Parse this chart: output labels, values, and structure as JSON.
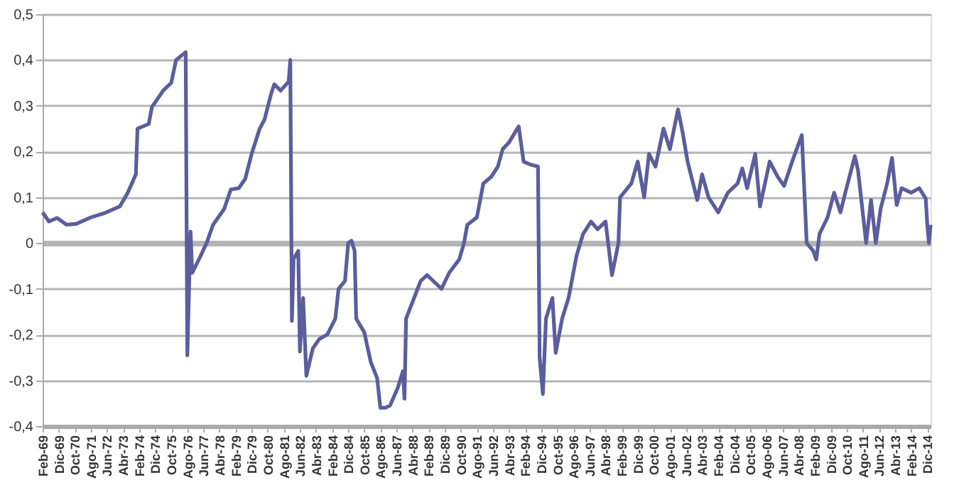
{
  "chart_data": {
    "type": "line",
    "x": [
      "1969-02",
      "1969-06",
      "1969-11",
      "1970-05",
      "1970-11",
      "1971-08",
      "1972-05",
      "1973-02",
      "1973-07",
      "1973-12",
      "1974-01",
      "1974-08",
      "1974-10",
      "1975-05",
      "1975-10",
      "1976-01",
      "1976-07",
      "1976-08",
      "1976-10",
      "1976-11",
      "1977-04",
      "1977-08",
      "1977-12",
      "1978-07",
      "1978-11",
      "1979-04",
      "1979-08",
      "1979-12",
      "1980-05",
      "1980-08",
      "1980-12",
      "1981-02",
      "1981-06",
      "1981-11",
      "1981-12",
      "1982-01",
      "1982-02",
      "1982-05",
      "1982-06",
      "1982-08",
      "1982-10",
      "1983-02",
      "1983-06",
      "1983-11",
      "1984-04",
      "1984-06",
      "1984-10",
      "1984-12",
      "1985-02",
      "1985-04",
      "1985-05",
      "1985-10",
      "1986-02",
      "1986-06",
      "1986-08",
      "1986-11",
      "1987-02",
      "1987-07",
      "1987-10",
      "1987-11",
      "1987-12",
      "1988-05",
      "1988-09",
      "1989-01",
      "1989-10",
      "1990-03",
      "1990-09",
      "1990-12",
      "1991-02",
      "1991-08",
      "1991-12",
      "1992-05",
      "1992-09",
      "1992-12",
      "1993-04",
      "1993-10",
      "1994-01",
      "1994-05",
      "1994-10",
      "1994-11",
      "1995-01",
      "1995-03",
      "1995-07",
      "1995-09",
      "1996-01",
      "1996-05",
      "1996-10",
      "1997-02",
      "1997-07",
      "1997-11",
      "1998-04",
      "1998-08",
      "1998-12",
      "1999-01",
      "1999-08",
      "1999-12",
      "2000-04",
      "2000-07",
      "2000-11",
      "2001-04",
      "2001-08",
      "2002-01",
      "2002-04",
      "2002-07",
      "2003-01",
      "2003-04",
      "2003-08",
      "2004-02",
      "2004-08",
      "2005-02",
      "2005-05",
      "2005-08",
      "2006-01",
      "2006-04",
      "2006-10",
      "2007-03",
      "2007-07",
      "2007-12",
      "2008-06",
      "2008-09",
      "2009-01",
      "2009-03",
      "2009-05",
      "2009-10",
      "2010-02",
      "2010-06",
      "2010-09",
      "2011-03",
      "2011-05",
      "2011-10",
      "2012-01",
      "2012-04",
      "2012-07",
      "2012-11",
      "2013-02",
      "2013-05",
      "2013-08",
      "2014-02",
      "2014-07",
      "2014-11",
      "2014-12",
      "2015-01",
      "2015-02"
    ],
    "series": [
      {
        "color": "#5b5e9c",
        "values": [
          0.067,
          0.047,
          0.055,
          0.04,
          0.042,
          0.056,
          0.066,
          0.08,
          0.11,
          0.15,
          0.25,
          0.26,
          0.297,
          0.333,
          0.35,
          0.4,
          0.417,
          -0.245,
          0.025,
          -0.065,
          -0.03,
          0.0,
          0.04,
          0.075,
          0.117,
          0.12,
          0.14,
          0.195,
          0.25,
          0.27,
          0.325,
          0.347,
          0.333,
          0.353,
          0.4,
          -0.17,
          -0.035,
          -0.017,
          -0.237,
          -0.12,
          -0.29,
          -0.23,
          -0.21,
          -0.2,
          -0.165,
          -0.1,
          -0.083,
          0.0,
          0.005,
          -0.017,
          -0.165,
          -0.195,
          -0.26,
          -0.295,
          -0.36,
          -0.36,
          -0.355,
          -0.315,
          -0.28,
          -0.34,
          -0.165,
          -0.12,
          -0.083,
          -0.07,
          -0.1,
          -0.064,
          -0.036,
          0.0,
          0.04,
          0.056,
          0.13,
          0.145,
          0.167,
          0.205,
          0.22,
          0.255,
          0.178,
          0.172,
          0.167,
          -0.25,
          -0.33,
          -0.165,
          -0.12,
          -0.24,
          -0.165,
          -0.12,
          -0.027,
          0.02,
          0.047,
          0.03,
          0.047,
          -0.07,
          0.0,
          0.1,
          0.13,
          0.178,
          0.1,
          0.195,
          0.167,
          0.25,
          0.205,
          0.292,
          0.24,
          0.178,
          0.094,
          0.15,
          0.1,
          0.067,
          0.11,
          0.13,
          0.163,
          0.12,
          0.195,
          0.08,
          0.178,
          0.145,
          0.125,
          0.178,
          0.236,
          0.0,
          -0.017,
          -0.036,
          0.02,
          0.056,
          0.11,
          0.067,
          0.11,
          0.19,
          0.158,
          0.0,
          0.094,
          0.0,
          0.075,
          0.13,
          0.186,
          0.083,
          0.12,
          0.11,
          0.12,
          0.097,
          0.04,
          0.0,
          0.04
        ]
      }
    ],
    "xlim": [
      "1969-02",
      "2015-02"
    ],
    "xticks": [
      {
        "value": "1969-02",
        "label": "Feb-69"
      },
      {
        "value": "1969-12",
        "label": "Dic-69"
      },
      {
        "value": "1970-10",
        "label": "Oct-70"
      },
      {
        "value": "1971-08",
        "label": "Ago-71"
      },
      {
        "value": "1972-06",
        "label": "Jun-72"
      },
      {
        "value": "1973-04",
        "label": "Abr-73"
      },
      {
        "value": "1974-02",
        "label": "Feb-74"
      },
      {
        "value": "1974-12",
        "label": "Dic-74"
      },
      {
        "value": "1975-10",
        "label": "Oct-75"
      },
      {
        "value": "1976-08",
        "label": "Ago-76"
      },
      {
        "value": "1977-06",
        "label": "Jun-77"
      },
      {
        "value": "1978-04",
        "label": "Abr-78"
      },
      {
        "value": "1979-02",
        "label": "Feb-79"
      },
      {
        "value": "1979-12",
        "label": "Dic-79"
      },
      {
        "value": "1980-10",
        "label": "Oct-80"
      },
      {
        "value": "1981-08",
        "label": "Ago-81"
      },
      {
        "value": "1982-06",
        "label": "Jun-82"
      },
      {
        "value": "1983-04",
        "label": "Abr-83"
      },
      {
        "value": "1984-02",
        "label": "Feb-84"
      },
      {
        "value": "1984-12",
        "label": "Dic-84"
      },
      {
        "value": "1985-10",
        "label": "Oct-85"
      },
      {
        "value": "1986-08",
        "label": "Ago-86"
      },
      {
        "value": "1987-06",
        "label": "Jun-87"
      },
      {
        "value": "1988-04",
        "label": "Abr-88"
      },
      {
        "value": "1989-02",
        "label": "Feb-89"
      },
      {
        "value": "1989-12",
        "label": "Dic-89"
      },
      {
        "value": "1990-10",
        "label": "Oct-90"
      },
      {
        "value": "1991-08",
        "label": "Ago-91"
      },
      {
        "value": "1992-06",
        "label": "Jun-92"
      },
      {
        "value": "1993-04",
        "label": "Abr-93"
      },
      {
        "value": "1994-02",
        "label": "Feb-94"
      },
      {
        "value": "1994-12",
        "label": "Dic-94"
      },
      {
        "value": "1995-10",
        "label": "Oct-95"
      },
      {
        "value": "1996-08",
        "label": "Ago-96"
      },
      {
        "value": "1997-06",
        "label": "Jun-97"
      },
      {
        "value": "1998-04",
        "label": "Abr-98"
      },
      {
        "value": "1999-02",
        "label": "Feb-99"
      },
      {
        "value": "1999-12",
        "label": "Dic-99"
      },
      {
        "value": "2000-10",
        "label": "Oct-00"
      },
      {
        "value": "2001-08",
        "label": "Ago-01"
      },
      {
        "value": "2002-06",
        "label": "Jun-02"
      },
      {
        "value": "2003-04",
        "label": "Abr-03"
      },
      {
        "value": "2004-02",
        "label": "Feb-04"
      },
      {
        "value": "2004-12",
        "label": "Dic-04"
      },
      {
        "value": "2005-10",
        "label": "Oct-05"
      },
      {
        "value": "2006-08",
        "label": "Ago-06"
      },
      {
        "value": "2007-06",
        "label": "Jun-07"
      },
      {
        "value": "2008-04",
        "label": "Abr-08"
      },
      {
        "value": "2009-02",
        "label": "Feb-09"
      },
      {
        "value": "2009-12",
        "label": "Dic-09"
      },
      {
        "value": "2010-10",
        "label": "Oct-10"
      },
      {
        "value": "2011-08",
        "label": "Ago-11"
      },
      {
        "value": "2012-06",
        "label": "Jun-12"
      },
      {
        "value": "2013-04",
        "label": "Abr-13"
      },
      {
        "value": "2014-02",
        "label": "Feb-14"
      },
      {
        "value": "2014-12",
        "label": "Dic-14"
      }
    ],
    "ylim": [
      -0.4,
      0.5
    ],
    "yticks": [
      {
        "value": -0.4,
        "label": "-0,4"
      },
      {
        "value": -0.3,
        "label": "-0,3"
      },
      {
        "value": -0.2,
        "label": "-0,2"
      },
      {
        "value": -0.1,
        "label": "-0,1"
      },
      {
        "value": 0,
        "label": "0"
      },
      {
        "value": 0.1,
        "label": "0,1"
      },
      {
        "value": 0.2,
        "label": "0,2"
      },
      {
        "value": 0.3,
        "label": "0,3"
      },
      {
        "value": 0.4,
        "label": "0,4"
      },
      {
        "value": 0.5,
        "label": "0,5"
      }
    ],
    "grid": "y",
    "marker": "none",
    "line_style": "solid"
  }
}
